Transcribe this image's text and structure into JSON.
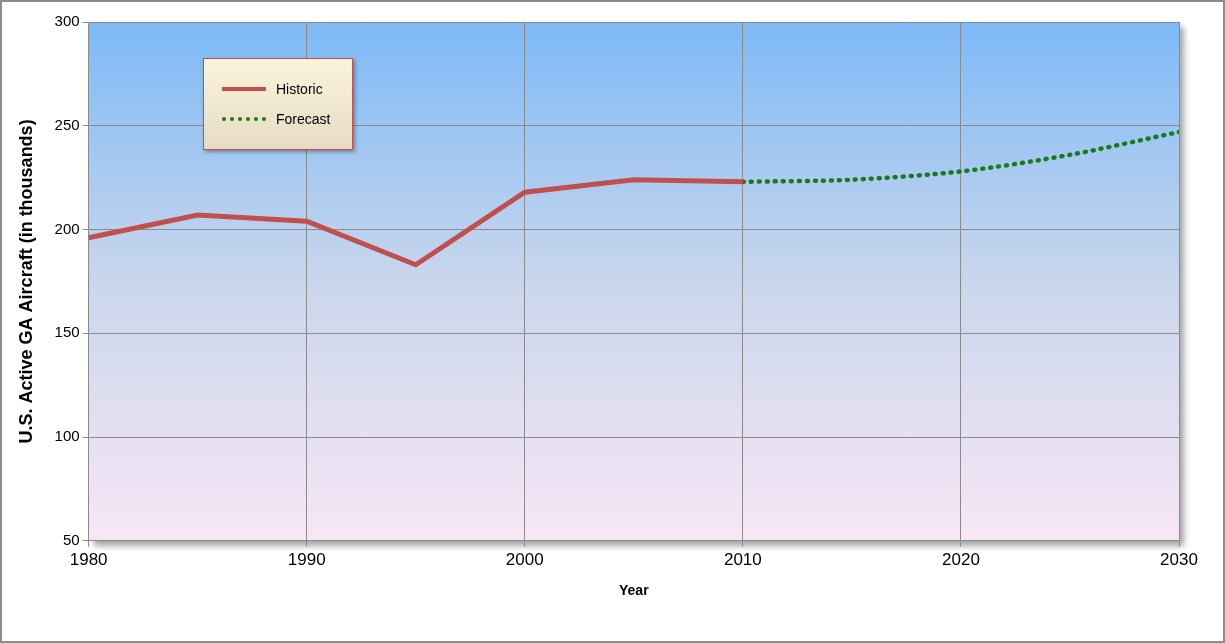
{
  "chart_data": {
    "type": "line",
    "x_label": "Year",
    "y_label": "U.S. Active GA Aircraft (in thousands)",
    "x": [
      1980,
      1985,
      1990,
      1995,
      2000,
      2005,
      2010,
      2015,
      2020,
      2025,
      2030
    ],
    "series": [
      {
        "name": "Historic",
        "color": "#c0504d",
        "line_style": "solid",
        "marker": "none",
        "values": [
          196,
          207,
          204,
          183,
          218,
          224,
          223,
          null,
          null,
          null,
          null
        ]
      },
      {
        "name": "Forecast",
        "color": "#1a7a1a",
        "line_style": "dotted",
        "marker": "none",
        "values": [
          null,
          null,
          null,
          null,
          null,
          null,
          223,
          224,
          228,
          236,
          247
        ]
      }
    ],
    "xlim": [
      1980,
      2030
    ],
    "xticks": [
      1980,
      1990,
      2000,
      2010,
      2020,
      2030
    ],
    "ylim": [
      50,
      300
    ],
    "yticks": [
      50,
      100,
      150,
      200,
      250,
      300
    ],
    "grid": true,
    "legend": "upper left"
  }
}
